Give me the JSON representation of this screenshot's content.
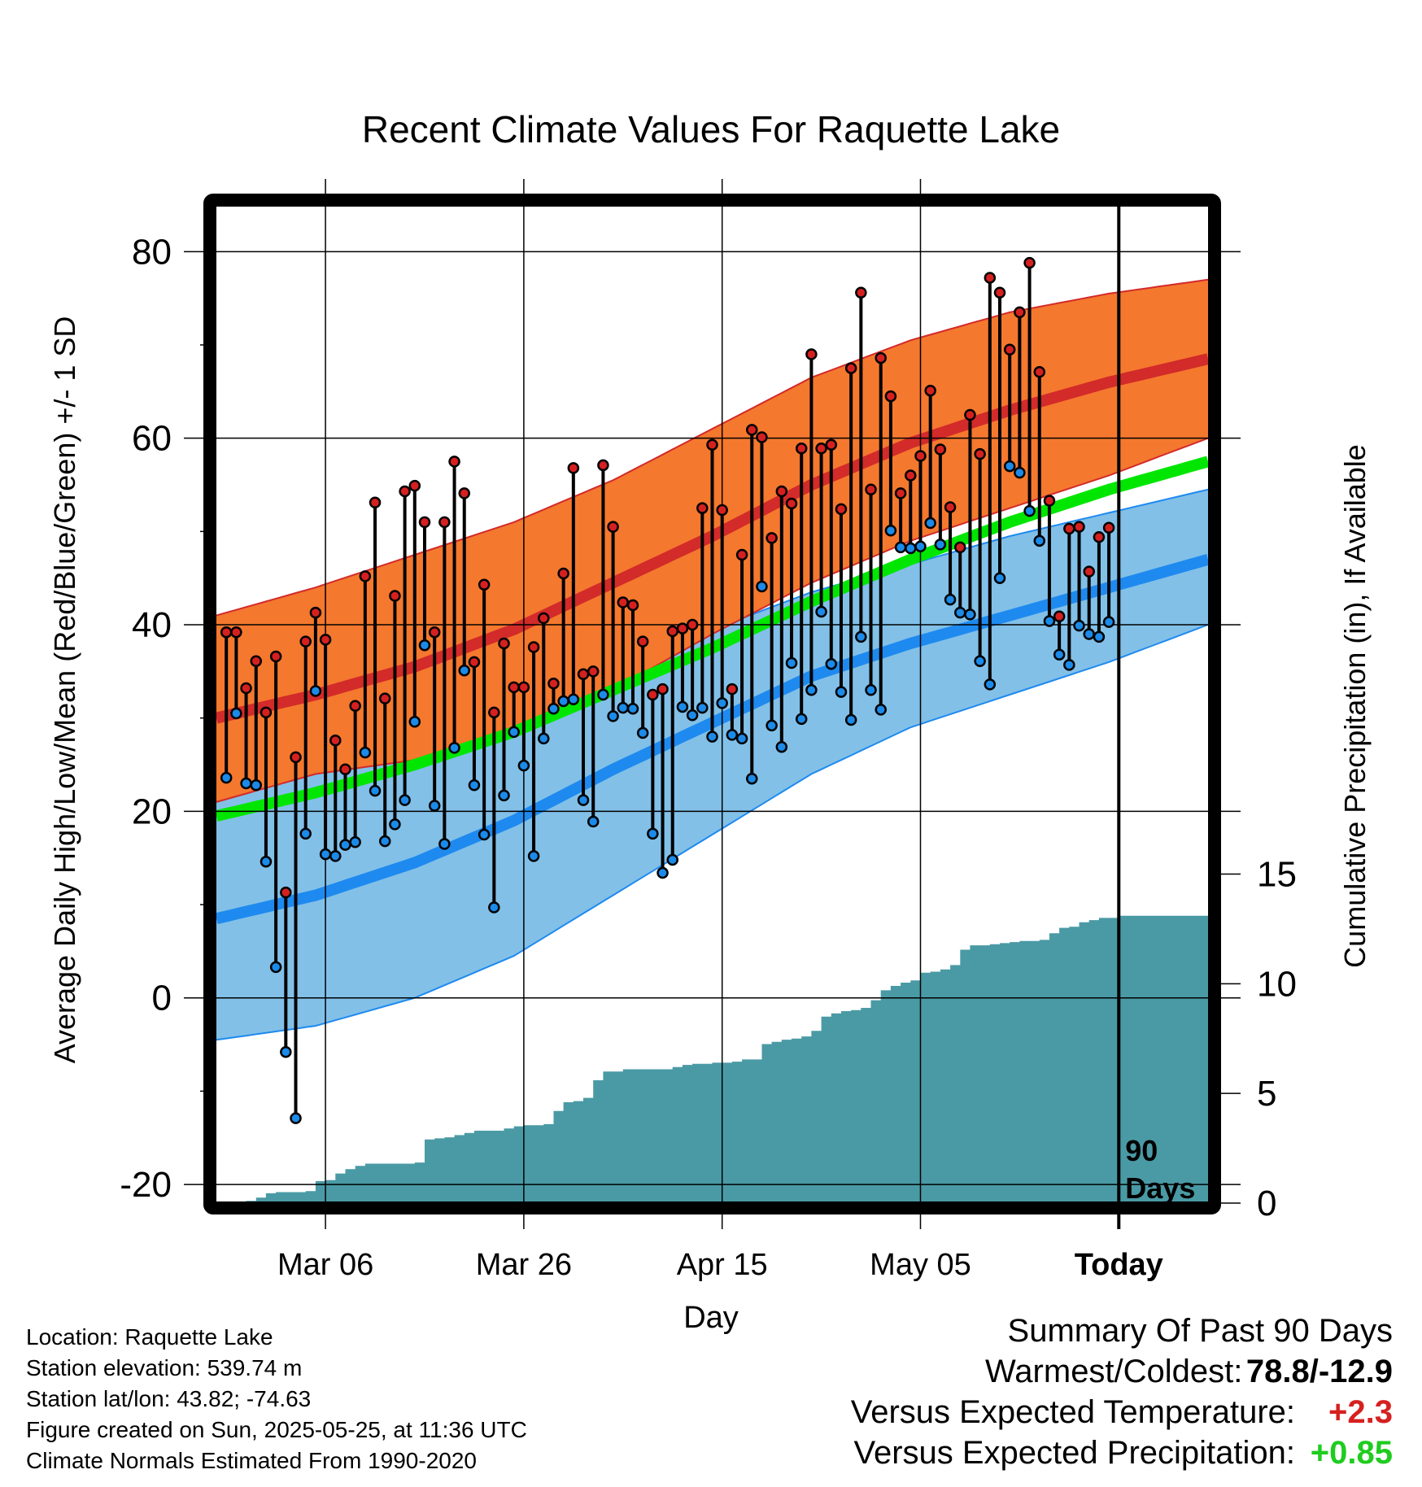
{
  "chart_data": {
    "type": "line",
    "title": "Recent Climate Values For Raquette Lake",
    "xlabel": "Day",
    "ylabel": "Average Daily High/Low/Mean (Red/Blue/Green) +/- 1 SD",
    "y2label": "Cumulative Precipitation (in), If Available",
    "x_tick_labels": [
      "Mar 06",
      "Mar 26",
      "Apr 15",
      "May 05",
      "Today"
    ],
    "x_tick_days": [
      11,
      31,
      51,
      71,
      91
    ],
    "x_range": [
      0,
      100
    ],
    "ylim": [
      -22,
      85
    ],
    "y_ticks": [
      -20,
      0,
      20,
      40,
      60,
      80
    ],
    "y2lim": [
      0,
      45.5
    ],
    "y2_ticks": [
      0,
      5,
      10,
      15
    ],
    "today_day": 91,
    "today_label": "90\nDays",
    "normal_high": {
      "days": [
        0,
        10,
        20,
        30,
        40,
        50,
        60,
        70,
        80,
        90,
        100
      ],
      "mean": [
        30,
        32.5,
        35.5,
        39.5,
        44.5,
        49.5,
        55,
        59.5,
        63,
        66,
        68.5
      ],
      "upper": [
        41,
        44,
        47.5,
        51,
        55.5,
        61,
        66.5,
        70.5,
        73.5,
        75.5,
        77
      ],
      "lower": [
        21,
        24,
        25.5,
        28.5,
        33,
        39,
        44.5,
        49,
        52.5,
        56,
        60
      ]
    },
    "normal_mean": {
      "days": [
        0,
        10,
        20,
        30,
        40,
        50,
        60,
        70,
        80,
        90,
        100
      ],
      "values": [
        19.5,
        22,
        25,
        28.5,
        33,
        37.5,
        42.5,
        47,
        51,
        54.5,
        57.5
      ]
    },
    "normal_low": {
      "days": [
        0,
        10,
        20,
        30,
        40,
        50,
        60,
        70,
        80,
        90,
        100
      ],
      "mean": [
        8.5,
        11,
        14.5,
        19,
        24.5,
        29.5,
        34.5,
        38,
        41,
        44,
        47
      ],
      "upper": [
        22.5,
        25,
        27.5,
        30,
        34.5,
        39.5,
        43.5,
        46.5,
        49.5,
        52,
        54.5
      ],
      "lower": [
        -4.5,
        -3,
        0,
        4.5,
        11,
        17.5,
        24,
        29,
        32.5,
        36,
        40
      ]
    },
    "highs": [
      39.2,
      39.2,
      33.2,
      36.1,
      30.6,
      36.6,
      11.3,
      25.8,
      38.2,
      41.3,
      38.4,
      27.6,
      24.5,
      31.3,
      45.2,
      53.1,
      32.1,
      43.1,
      54.3,
      54.9,
      51.0,
      39.2,
      51.0,
      57.5,
      54.1,
      36.0,
      44.3,
      30.6,
      38.0,
      33.3,
      33.3,
      37.6,
      40.7,
      33.7,
      45.5,
      56.8,
      34.7,
      35.0,
      57.1,
      50.5,
      42.4,
      42.1,
      38.2,
      32.5,
      33.1,
      39.3,
      39.6,
      40.0,
      52.5,
      59.3,
      52.3,
      33.1,
      47.5,
      60.9,
      60.1,
      49.3,
      54.3,
      53.0,
      58.9,
      69.0,
      58.9,
      59.3,
      52.4,
      67.5,
      75.6,
      54.5,
      68.6,
      64.5,
      54.1,
      56.0,
      58.1,
      65.1,
      58.8,
      52.6,
      48.3,
      62.5,
      58.3,
      77.2,
      75.6,
      69.5,
      73.5,
      78.8,
      67.1,
      53.3,
      40.9,
      50.3,
      50.5,
      45.7,
      49.4,
      50.4
    ],
    "lows": [
      23.6,
      30.5,
      23.0,
      22.8,
      14.6,
      3.3,
      -5.8,
      -12.9,
      17.6,
      32.9,
      15.4,
      15.2,
      16.4,
      16.7,
      26.3,
      22.2,
      16.8,
      18.6,
      21.2,
      29.6,
      37.8,
      20.6,
      16.5,
      26.8,
      35.1,
      22.8,
      17.5,
      9.7,
      21.7,
      28.5,
      24.9,
      15.2,
      27.8,
      31.0,
      31.8,
      32.0,
      21.2,
      18.9,
      32.5,
      30.2,
      31.1,
      31.0,
      28.4,
      17.6,
      13.4,
      14.8,
      31.2,
      30.3,
      31.1,
      28.0,
      31.6,
      28.2,
      27.8,
      23.5,
      44.1,
      29.2,
      26.9,
      35.9,
      29.9,
      33.0,
      41.4,
      35.8,
      32.8,
      29.8,
      38.7,
      33.0,
      30.9,
      50.1,
      48.3,
      48.2,
      48.4,
      50.9,
      48.6,
      42.7,
      41.3,
      41.1,
      36.1,
      33.6,
      45.0,
      57.0,
      56.3,
      52.2,
      49.0,
      40.4,
      36.8,
      35.7,
      39.9,
      39.0,
      38.7,
      40.3
    ],
    "precip_cumulative": {
      "days": [
        3,
        4,
        5,
        6,
        9,
        10,
        11,
        12,
        13,
        14,
        15,
        20,
        21,
        22,
        23,
        24,
        25,
        26,
        29,
        30,
        31,
        33,
        34,
        35,
        36,
        37,
        38,
        39,
        40,
        41,
        46,
        47,
        48,
        49,
        50,
        51,
        52,
        53,
        55,
        56,
        57,
        58,
        59,
        60,
        61,
        62,
        63,
        64,
        65,
        66,
        67,
        68,
        69,
        70,
        71,
        72,
        73,
        74,
        75,
        76,
        77,
        78,
        79,
        80,
        81,
        82,
        83,
        84,
        85,
        86,
        87,
        88,
        89,
        90,
        91,
        100
      ],
      "values": [
        0.1,
        0.25,
        0.45,
        0.5,
        0.55,
        1.0,
        1.05,
        1.35,
        1.55,
        1.7,
        1.8,
        1.85,
        2.9,
        2.95,
        3.0,
        3.1,
        3.2,
        3.3,
        3.4,
        3.5,
        3.55,
        3.6,
        4.2,
        4.6,
        4.65,
        4.8,
        5.6,
        6.0,
        6.0,
        6.1,
        6.2,
        6.3,
        6.35,
        6.35,
        6.4,
        6.4,
        6.45,
        6.55,
        7.25,
        7.35,
        7.45,
        7.5,
        7.6,
        7.85,
        8.5,
        8.65,
        8.75,
        8.8,
        8.9,
        9.25,
        9.7,
        9.9,
        10.05,
        10.15,
        10.5,
        10.55,
        10.65,
        10.85,
        11.55,
        11.75,
        11.75,
        11.8,
        11.85,
        11.9,
        11.95,
        11.95,
        12.0,
        12.3,
        12.55,
        12.6,
        12.8,
        12.9,
        13.0,
        13.0,
        13.1,
        13.1
      ]
    },
    "colors": {
      "high_band": "#f4782e",
      "high_line": "#d32a2a",
      "low_band": "#82c0e8",
      "low_line": "#1e8aef",
      "mean_line": "#00e600",
      "precip_fill": "#4a9aa5",
      "high_dot": "#d62020",
      "low_dot": "#1b8ae8",
      "frame": "#000000",
      "grid": "#000000",
      "positive": "#d62020",
      "green_value": "#1fcc1f"
    }
  },
  "info": {
    "location": "Location: Raquette Lake",
    "elevation": "Station elevation: 539.74 m",
    "latlon": "Station lat/lon: 43.82; -74.63",
    "created": "Figure created on Sun, 2025-05-25, at 11:36 UTC",
    "normals": "Climate Normals Estimated From 1990-2020"
  },
  "summary": {
    "heading": "Summary Of Past 90 Days",
    "warm_cold_label": "Warmest/Coldest:",
    "warm_cold_value": "78.8/-12.9",
    "temp_label": "Versus Expected Temperature:",
    "temp_value": "+2.3",
    "precip_label": "Versus Expected Precipitation:",
    "precip_value": "+0.85"
  }
}
